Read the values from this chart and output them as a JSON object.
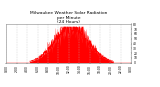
{
  "title": "Milwaukee Weather Solar Radiation\nper Minute\n(24 Hours)",
  "background_color": "#ffffff",
  "bar_color": "#ff0000",
  "grid_color": "#bbbbbb",
  "ylim": [
    0,
    80
  ],
  "xlim": [
    0,
    1440
  ],
  "num_minutes": 1440,
  "peak_minute": 750,
  "sigma": 190,
  "noise_scale": 0.15,
  "title_fontsize": 3.2,
  "tick_fontsize": 2.2,
  "ytick_positions": [
    0,
    10,
    20,
    30,
    40,
    50,
    60,
    70,
    80
  ],
  "ytick_labels": [
    "0",
    "10",
    "20",
    "30",
    "40",
    "50",
    "60",
    "70",
    "80"
  ],
  "xtick_positions": [
    0,
    120,
    240,
    360,
    480,
    600,
    720,
    840,
    960,
    1080,
    1200,
    1320,
    1440
  ],
  "xtick_labels": [
    "0:00",
    "2:00",
    "4:00",
    "6:00",
    "8:00",
    "10:00",
    "12:00",
    "14:00",
    "16:00",
    "18:00",
    "20:00",
    "22:00",
    "0:00"
  ]
}
